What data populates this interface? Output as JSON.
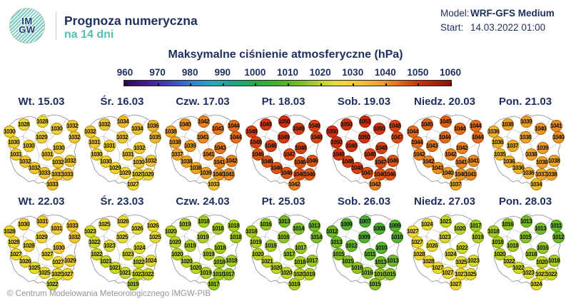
{
  "header": {
    "logo_line1": "IM",
    "logo_line2": "GW",
    "title": "Prognoza numeryczna",
    "subtitle": "na 14 dni",
    "model_label": "Model:",
    "model_value": "WRF-GFS Medium",
    "start_label": "Start:",
    "start_value": "14.03.2022 01:00"
  },
  "footer": "© Centrum Modelowania Meteorologicznego IMGW-PIB",
  "colors": {
    "navy": "#1e2f5e",
    "teal": "#57bfb0",
    "footer_gray": "#949494",
    "scale_stops": [
      [
        960,
        "#2e0854"
      ],
      [
        969,
        "#45279b"
      ],
      [
        976,
        "#3a56c4"
      ],
      [
        982,
        "#3689c8"
      ],
      [
        988,
        "#28aab4"
      ],
      [
        993,
        "#16a88e"
      ],
      [
        999,
        "#22aa52"
      ],
      [
        1005,
        "#3dad36"
      ],
      [
        1010,
        "#58b32a"
      ],
      [
        1014,
        "#7cbe25"
      ],
      [
        1018,
        "#a5cc21"
      ],
      [
        1021,
        "#c6d626"
      ],
      [
        1024,
        "#e2dc2f"
      ],
      [
        1027,
        "#efd932"
      ],
      [
        1031,
        "#f2cc2e"
      ],
      [
        1035,
        "#f0b82a"
      ],
      [
        1039,
        "#ee9d23"
      ],
      [
        1043,
        "#e6771c"
      ],
      [
        1046,
        "#dd5413"
      ],
      [
        1049,
        "#d63710"
      ],
      [
        1052,
        "#c9250b"
      ],
      [
        1060,
        "#8f1206"
      ]
    ]
  },
  "chart_data": {
    "type": "heatmap",
    "title": "Maksymalne ciśnienie atmosferyczne (hPa)",
    "unit": "hPa",
    "colorbar": {
      "min": 960,
      "max": 1060,
      "ticks": [
        960,
        970,
        980,
        990,
        1000,
        1010,
        1020,
        1030,
        1040,
        1050,
        1060
      ]
    },
    "marker_positions": [
      [
        8,
        29
      ],
      [
        28,
        19
      ],
      [
        54,
        15
      ],
      [
        74,
        25
      ],
      [
        96,
        21
      ],
      [
        53,
        37
      ],
      [
        99,
        37
      ],
      [
        14,
        44
      ],
      [
        35,
        49
      ],
      [
        77,
        52
      ],
      [
        17,
        61
      ],
      [
        61,
        61
      ],
      [
        30,
        71
      ],
      [
        76,
        72
      ],
      [
        93,
        70
      ],
      [
        43,
        80
      ],
      [
        57,
        87
      ],
      [
        75,
        89
      ],
      [
        89,
        89
      ],
      [
        68,
        103
      ]
    ],
    "days": [
      "Wt. 15.03",
      "Śr. 16.03",
      "Czw. 17.03",
      "Pt. 18.03",
      "Sob. 19.03",
      "Niedz. 20.03",
      "Pon. 21.03",
      "Wt. 22.03",
      "Śr. 23.03",
      "Czw. 24.03",
      "Pt. 25.03",
      "Sob. 26.03",
      "Niedz. 27.03",
      "Pon. 28.03"
    ],
    "values_by_day": [
      [
        1030,
        1028,
        1028,
        1030,
        1032,
        1029,
        1032,
        1030,
        1030,
        1030,
        1031,
        1031,
        1032,
        1032,
        1032,
        1032,
        1033,
        1033,
        1033,
        1033
      ],
      [
        1032,
        1032,
        1034,
        1034,
        1036,
        1032,
        1035,
        1031,
        1031,
        1032,
        1030,
        1031,
        1030,
        1030,
        1032,
        1029,
        1029,
        1029,
        1029,
        1027
      ],
      [
        1038,
        1040,
        1042,
        1043,
        1044,
        1041,
        1044,
        1038,
        1039,
        1043,
        1037,
        1041,
        1038,
        1041,
        1042,
        1038,
        1039,
        1040,
        1041,
        1033
      ],
      [
        1048,
        1049,
        1050,
        1049,
        1048,
        1049,
        1048,
        1048,
        1048,
        1048,
        1046,
        1047,
        1046,
        1046,
        1046,
        1046,
        1046,
        1046,
        1046,
        1042
      ],
      [
        1050,
        1050,
        1051,
        1050,
        1048,
        1050,
        1047,
        1050,
        1049,
        1048,
        1049,
        1048,
        1048,
        1047,
        1046,
        1048,
        1047,
        1046,
        1046,
        1042
      ],
      [
        1044,
        1045,
        1045,
        1044,
        1044,
        1044,
        1044,
        1044,
        1043,
        1042,
        1042,
        1042,
        1042,
        1041,
        1041,
        1041,
        1040,
        1040,
        1041,
        1037
      ],
      [
        1036,
        1038,
        1039,
        1040,
        1041,
        1038,
        1040,
        1036,
        1037,
        1039,
        1035,
        1038,
        1036,
        1038,
        1038,
        1036,
        1036,
        1037,
        1038,
        1034
      ],
      [
        1028,
        1030,
        1031,
        1031,
        1033,
        1029,
        1032,
        1028,
        1028,
        1030,
        1027,
        1027,
        1026,
        1027,
        1029,
        1025,
        1025,
        1025,
        1027,
        1022
      ],
      [
        1023,
        1025,
        1026,
        1026,
        1026,
        1025,
        1025,
        1022,
        1023,
        1024,
        1022,
        1023,
        1021,
        1022,
        1024,
        1021,
        1021,
        1022,
        1022,
        1019
      ],
      [
        1020,
        1019,
        1018,
        1018,
        1018,
        1019,
        1018,
        1020,
        1019,
        1018,
        1020,
        1019,
        1020,
        1018,
        1018,
        1020,
        1019,
        1018,
        1017,
        1017
      ],
      [
        1018,
        1016,
        1013,
        1014,
        1013,
        1016,
        1014,
        1019,
        1018,
        1017,
        1020,
        1017,
        1021,
        1018,
        1017,
        1020,
        1020,
        1020,
        1019,
        1019
      ],
      [
        1012,
        1009,
        1007,
        1008,
        1009,
        1009,
        1010,
        1013,
        1012,
        1010,
        1015,
        1011,
        1015,
        1013,
        1013,
        1016,
        1016,
        1016,
        1015,
        1015
      ],
      [
        1027,
        1024,
        1021,
        1020,
        1017,
        1023,
        1019,
        1027,
        1026,
        1022,
        1028,
        1024,
        1028,
        1025,
        1023,
        1027,
        1027,
        1027,
        1025,
        1027
      ],
      [
        1018,
        1016,
        1013,
        1013,
        1011,
        1015,
        1012,
        1018,
        1018,
        1016,
        1020,
        1018,
        1022,
        1020,
        1018,
        1022,
        1023,
        1023,
        1022,
        1024
      ]
    ]
  }
}
